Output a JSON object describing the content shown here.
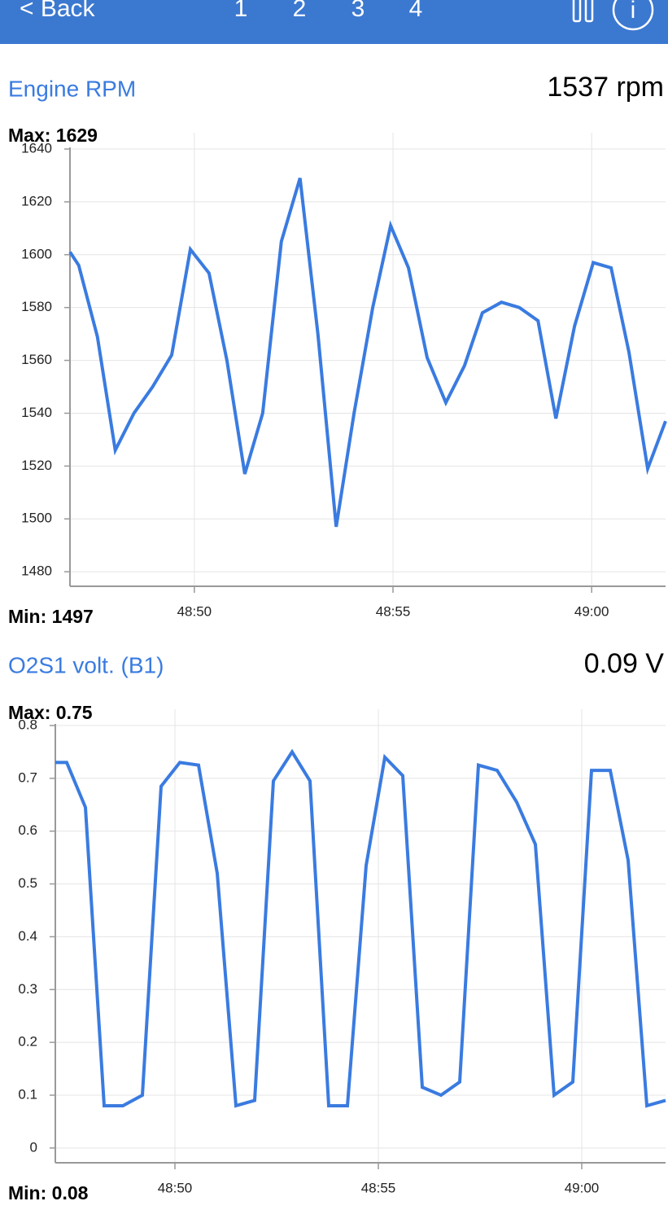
{
  "header": {
    "back": "< Back",
    "pages": [
      "1",
      "2",
      "3",
      "4"
    ],
    "info": "i"
  },
  "chart_data": [
    {
      "type": "line",
      "title": "Engine RPM",
      "reading": "1537 rpm",
      "max_label": "Max: 1629",
      "min_label": "Min: 1497",
      "color": "#3a7be0",
      "grid": true,
      "x": [
        2926.87,
        2927.09,
        2927.56,
        2928.01,
        2928.48,
        2928.95,
        2929.43,
        2929.9,
        2930.37,
        2930.82,
        2931.27,
        2931.72,
        2932.19,
        2932.66,
        2933.11,
        2933.57,
        2934.02,
        2934.49,
        2934.94,
        2935.39,
        2935.86,
        2936.33,
        2936.8,
        2937.25,
        2937.73,
        2938.18,
        2938.65,
        2939.1,
        2939.57,
        2940.04,
        2940.49,
        2940.94,
        2941.41,
        2941.86
      ],
      "values": [
        1601,
        1596,
        1569,
        1526,
        1540,
        1550,
        1562,
        1602,
        1593,
        1560,
        1517,
        1540,
        1605,
        1629,
        1570,
        1497,
        1540,
        1580,
        1611,
        1595,
        1561,
        1544,
        1558,
        1578,
        1582,
        1580,
        1575,
        1538,
        1573,
        1597,
        1595,
        1563,
        1519,
        1537
      ],
      "xlim": [
        2926.87,
        2941.86
      ],
      "xticks": [
        {
          "value": 2930,
          "label": "48:50"
        },
        {
          "value": 2935,
          "label": "48:55"
        },
        {
          "value": 2940,
          "label": "49:00"
        }
      ],
      "ylim": [
        1474.5,
        1640
      ],
      "yticks": [
        1480,
        1500,
        1520,
        1540,
        1560,
        1580,
        1600,
        1620,
        1640
      ]
    },
    {
      "type": "line",
      "title": "O2S1 volt. (B1)",
      "reading": "0.09 V",
      "max_label": "Max: 0.75",
      "min_label": "Min: 0.08",
      "color": "#3a7be0",
      "grid": true,
      "x": [
        2927.06,
        2927.34,
        2927.8,
        2928.26,
        2928.72,
        2929.2,
        2929.66,
        2930.12,
        2930.58,
        2931.04,
        2931.5,
        2931.96,
        2932.42,
        2932.88,
        2933.32,
        2933.78,
        2934.24,
        2934.7,
        2935.16,
        2935.6,
        2936.08,
        2936.54,
        2937.0,
        2937.46,
        2937.92,
        2938.4,
        2938.86,
        2939.32,
        2939.78,
        2940.24,
        2940.7,
        2941.14,
        2941.6,
        2942.06
      ],
      "values": [
        0.73,
        0.73,
        0.645,
        0.08,
        0.08,
        0.1,
        0.685,
        0.73,
        0.725,
        0.52,
        0.08,
        0.09,
        0.695,
        0.75,
        0.695,
        0.08,
        0.08,
        0.535,
        0.74,
        0.705,
        0.115,
        0.1,
        0.125,
        0.725,
        0.715,
        0.655,
        0.575,
        0.1,
        0.125,
        0.715,
        0.715,
        0.545,
        0.08,
        0.09
      ],
      "xlim": [
        2927.06,
        2942.06
      ],
      "xticks": [
        {
          "value": 2930,
          "label": "48:50"
        },
        {
          "value": 2935,
          "label": "48:55"
        },
        {
          "value": 2940,
          "label": "49:00"
        }
      ],
      "ylim": [
        -0.028,
        0.8
      ],
      "yticks": [
        0,
        {
          "value": 0.1,
          "label": "0.1"
        },
        {
          "value": 0.2,
          "label": "0.2"
        },
        {
          "value": 0.3,
          "label": "0.3"
        },
        {
          "value": 0.4,
          "label": "0.4"
        },
        {
          "value": 0.5,
          "label": "0.5"
        },
        {
          "value": 0.6,
          "label": "0.6"
        },
        {
          "value": 0.7,
          "label": "0.7"
        },
        {
          "value": 0.8,
          "label": "0.8"
        }
      ]
    }
  ]
}
